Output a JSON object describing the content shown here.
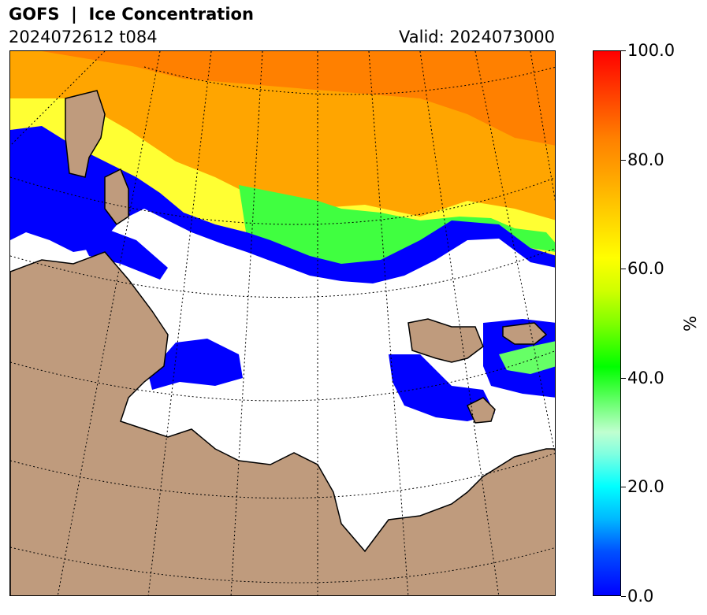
{
  "header": {
    "title": "GOFS  |  Ice Concentration",
    "run": "2024072612 t084",
    "valid": "Valid: 2024073000"
  },
  "colorbar": {
    "unit": "%",
    "ticks": [
      "0.0",
      "20.0",
      "40.0",
      "60.0",
      "80.0",
      "100.0"
    ],
    "range": [
      0,
      100
    ]
  },
  "colors": {
    "land": "#bf9b7d",
    "ocean_no_ice": "#ffffff",
    "ice_high": "#ff8c00",
    "ice_mid": "#ffff00",
    "ice_low": "#0000ff",
    "coast": "#000000",
    "graticule": "#000000"
  },
  "map": {
    "projection": "polar stereographic",
    "graticule": "dotted",
    "region": "Barents / Kara Seas"
  }
}
